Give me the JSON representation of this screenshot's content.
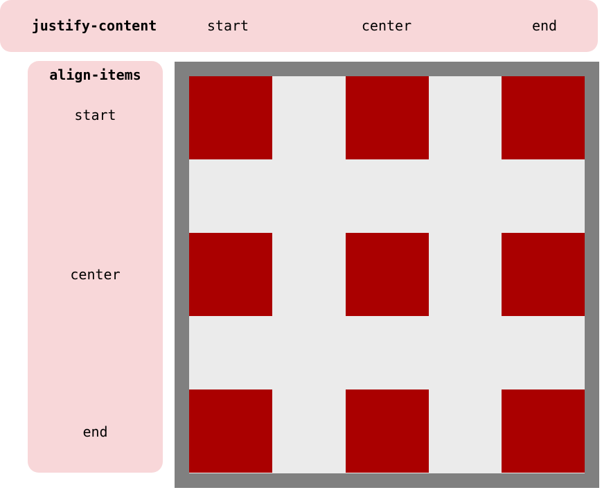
{
  "justify_content": {
    "title": "justify-content",
    "options": [
      "start",
      "center",
      "end"
    ]
  },
  "align_items": {
    "title": "align-items",
    "options": [
      "start",
      "center",
      "end"
    ]
  },
  "colors": {
    "label_panel": "#f8d7d9",
    "frame": "#808080",
    "grid_background": "#ebebeb",
    "item": "#aa0000"
  }
}
